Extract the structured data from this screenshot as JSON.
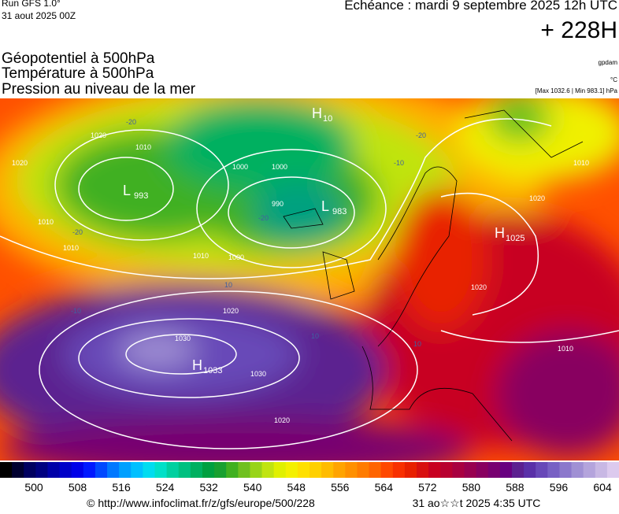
{
  "header": {
    "run": "Run GFS 1.0°",
    "run_date": "31 aout 2025 00Z",
    "forecast": "Echéance : mardi 9 septembre 2025 12h UTC",
    "lead": "+ 228H"
  },
  "fields": [
    "Géopotentiel à 500hPa",
    "Température à 500hPa",
    "Pression au niveau de la mer"
  ],
  "units": {
    "geopotential": "gpdam",
    "temperature": "°C",
    "pressure": "[Max 1032.6 | Min 983.1] hPa"
  },
  "centers": [
    {
      "letter": "H",
      "value": "10"
    },
    {
      "letter": "L",
      "value": "993"
    },
    {
      "letter": "L",
      "value": "983"
    },
    {
      "letter": "H",
      "value": "1025"
    },
    {
      "letter": "H",
      "value": "1033"
    }
  ],
  "isobar_labels": [
    "1020",
    "1010",
    "1000",
    "1000",
    "990",
    "1010",
    "1000",
    "1020",
    "1030",
    "1030",
    "1020",
    "1020",
    "1010",
    "1010",
    "1020",
    "1010",
    "1010",
    "1020"
  ],
  "temperature_labels": [
    "-20",
    "-20",
    "-20",
    "-20",
    "-10",
    "-10",
    "10",
    "10",
    "10"
  ],
  "colorbar": {
    "ticks": [
      500,
      508,
      516,
      524,
      532,
      540,
      548,
      556,
      564,
      572,
      580,
      588,
      596,
      604
    ],
    "colors": [
      "#000000",
      "#000030",
      "#000060",
      "#000080",
      "#0000a8",
      "#0000c8",
      "#0000e8",
      "#0018ff",
      "#0048ff",
      "#0078ff",
      "#00a0ff",
      "#00c0ff",
      "#00dcf0",
      "#00e0c8",
      "#00d0a0",
      "#00c080",
      "#00b060",
      "#00a040",
      "#18a030",
      "#40b020",
      "#70c020",
      "#98d418",
      "#c0e410",
      "#e0f000",
      "#f4f000",
      "#ffe000",
      "#ffd000",
      "#ffbc00",
      "#ffa400",
      "#ff9000",
      "#ff7c00",
      "#ff6400",
      "#ff4800",
      "#f83000",
      "#e82000",
      "#d81010",
      "#c80020",
      "#b80030",
      "#a80040",
      "#980050",
      "#880060",
      "#780070",
      "#680080",
      "#5c2090",
      "#5a30a8",
      "#6848b8",
      "#7860c4",
      "#8c78cc",
      "#a090d4",
      "#b4a4dc",
      "#c8b8e4",
      "#dccaee"
    ]
  },
  "footer": {
    "url": "© http://www.infoclimat.fr/z/gfs/europe/500/228",
    "timestamp": "31 ao☆☆t 2025  4:35 UTC"
  }
}
